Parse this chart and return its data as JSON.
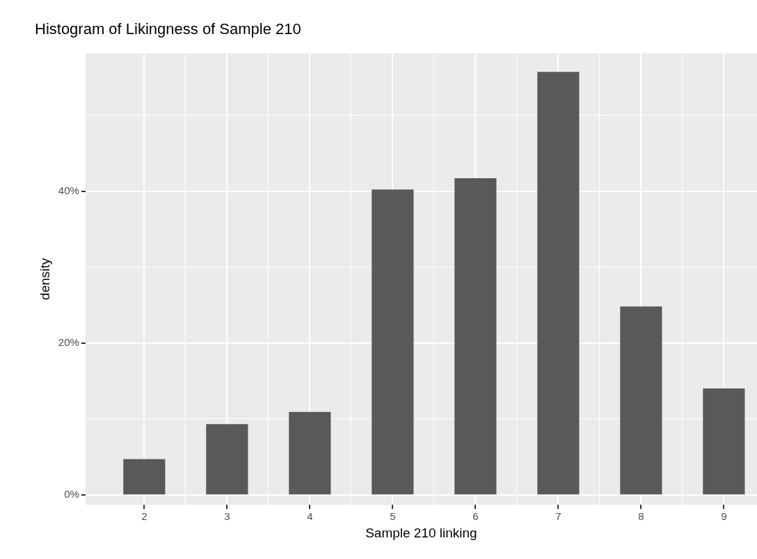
{
  "chart_data": {
    "type": "bar",
    "title": "Histogram of Likingness of Sample 210",
    "xlabel": "Sample 210 linking",
    "ylabel": "density",
    "x": [
      2,
      3,
      4,
      5,
      6,
      7,
      8,
      9
    ],
    "values": [
      4.7,
      9.3,
      10.9,
      40.2,
      41.7,
      55.7,
      24.8,
      14.0
    ],
    "color": "#595959",
    "xlim": [
      1.29,
      9.4
    ],
    "xticks": [
      2,
      {
        "value": 2.5,
        "label": null
      },
      3,
      {
        "value": 3.5,
        "label": null
      },
      4,
      {
        "value": 4.5,
        "label": null
      },
      5,
      {
        "value": 5.5,
        "label": null
      },
      6,
      {
        "value": 6.5,
        "label": null
      },
      7,
      {
        "value": 7.5,
        "label": null
      },
      8,
      {
        "value": 8.5,
        "label": null
      },
      9
    ],
    "ylim": [
      -1.3,
      58.2
    ],
    "yticks": [
      {
        "value": 0,
        "label": "0%"
      },
      {
        "value": 10,
        "label": null
      },
      {
        "value": 20,
        "label": "20%"
      },
      {
        "value": 30,
        "label": null
      },
      {
        "value": 40,
        "label": "40%"
      },
      {
        "value": 50,
        "label": null
      }
    ],
    "grid": true,
    "legend": false
  }
}
